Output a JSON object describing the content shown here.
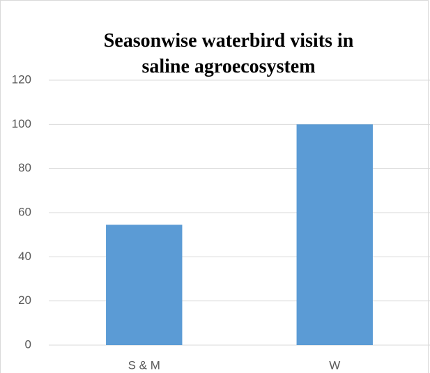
{
  "chart_data": {
    "type": "bar",
    "title": "Seasonwise waterbird visits in saline agroecosystem",
    "categories": [
      "S & M",
      "W"
    ],
    "values": [
      54.5,
      100
    ],
    "color": "#5b9bd5",
    "ylim": [
      0,
      120
    ],
    "yticks": [
      0,
      20,
      40,
      60,
      80,
      100,
      120
    ],
    "grid": true
  }
}
